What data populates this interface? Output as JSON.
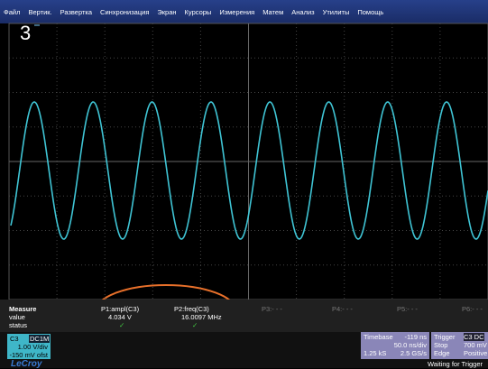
{
  "menu": [
    "Файл",
    "Вертик.",
    "Развертка",
    "Синхронизация",
    "Экран",
    "Курсоры",
    "Измерения",
    "Матем",
    "Анализ",
    "Утилиты",
    "Помощь"
  ],
  "overlay_label": "3",
  "measure": {
    "title": "Measure",
    "row_labels": [
      "value",
      "status"
    ],
    "params": [
      {
        "name": "P1:ampl(C3)",
        "value": "4.034 V",
        "status": "✓"
      },
      {
        "name": "P2:freq(C3)",
        "value": "16.0097 MHz",
        "status": "✓"
      },
      {
        "name": "P3:- - -"
      },
      {
        "name": "P4:- - -"
      },
      {
        "name": "P5:- - -"
      },
      {
        "name": "P6:- - -"
      }
    ]
  },
  "channel": {
    "name": "C3",
    "coupling": "DC1M",
    "scale": "1.00 V/div",
    "offset": "-150 mV ofst"
  },
  "timebase": {
    "title": "Timebase",
    "delay": "-119 ns",
    "scale": "50.0 ns/div",
    "samples": "1.25 kS",
    "rate": "2.5 GS/s"
  },
  "trigger": {
    "title": "Trigger",
    "source": "C3 DC",
    "mode": "Stop",
    "level": "700 mV",
    "type": "Edge",
    "slope": "Positive"
  },
  "status": "Waiting for Trigger",
  "brand": "LeCroy"
}
